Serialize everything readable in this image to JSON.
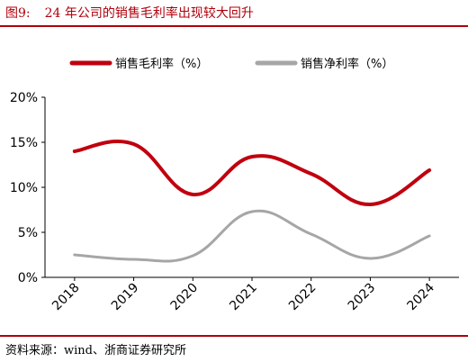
{
  "figure": {
    "number": "图9:",
    "title": "24 年公司的销售毛利率出现较大回升",
    "source": "资料来源：wind、浙商证券研究所"
  },
  "colors": {
    "accent": "#b0000b",
    "gross_margin": "#c0000f",
    "net_margin": "#a6a6a6"
  },
  "chart_data": {
    "type": "line",
    "x": [
      "2018",
      "2019",
      "2020",
      "2021",
      "2022",
      "2023",
      "2024"
    ],
    "series": [
      {
        "name": "销售毛利率（%）",
        "values": [
          14.0,
          14.8,
          9.2,
          13.4,
          11.5,
          8.1,
          11.9
        ]
      },
      {
        "name": "销售净利率（%）",
        "values": [
          2.5,
          2.0,
          2.4,
          7.3,
          4.8,
          2.1,
          4.6
        ]
      }
    ],
    "y_ticks": [
      "0%",
      "5%",
      "10%",
      "15%",
      "20%"
    ],
    "ylim": [
      0,
      20
    ],
    "legend_position": "top",
    "grid": false,
    "smooth": true
  }
}
